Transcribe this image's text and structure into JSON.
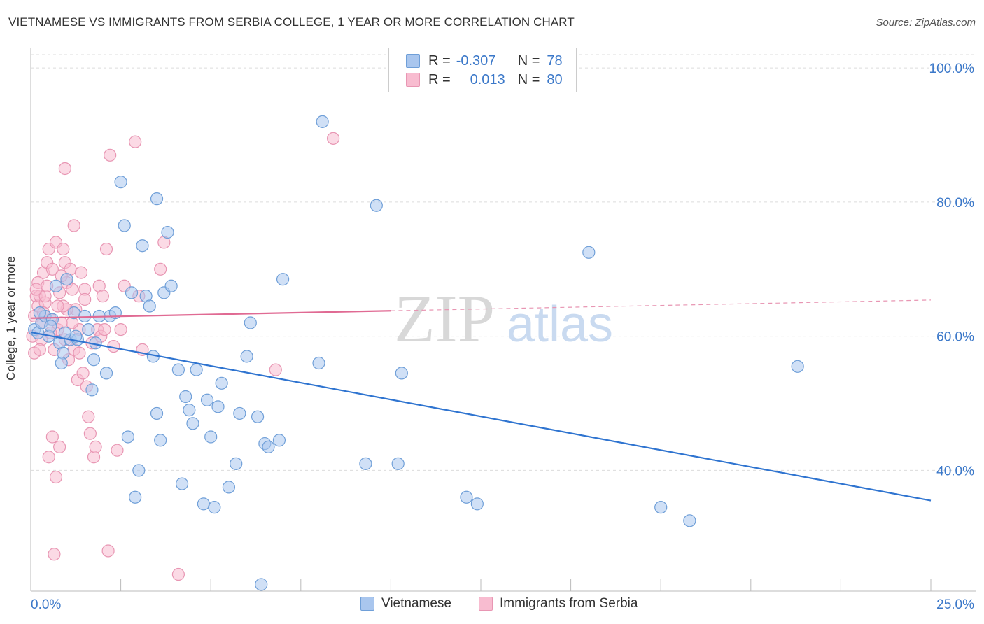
{
  "title": "VIETNAMESE VS IMMIGRANTS FROM SERBIA COLLEGE, 1 YEAR OR MORE CORRELATION CHART",
  "source": "Source: ZipAtlas.com",
  "watermark": {
    "zip": "ZIP",
    "atlas": "atlas"
  },
  "legend": {
    "rows": [
      {
        "r_label": "R =",
        "r_value": "-0.307",
        "n_label": "N =",
        "n_value": "78",
        "color": "#a9c6ee",
        "edge": "#6f9fd8"
      },
      {
        "r_label": "R =",
        "r_value": "0.013",
        "n_label": "N =",
        "n_value": "80",
        "color": "#f8bcd0",
        "edge": "#e896b3"
      }
    ]
  },
  "chart_data": {
    "type": "scatter",
    "title": "VIETNAMESE VS IMMIGRANTS FROM SERBIA COLLEGE, 1 YEAR OR MORE CORRELATION CHART",
    "xlabel": "",
    "ylabel": "College, 1 year or more",
    "xlim": [
      0,
      25
    ],
    "ylim": [
      22,
      102
    ],
    "x_tick_labels": [
      "0.0%",
      "25.0%"
    ],
    "y_ticks": [
      40,
      60,
      80,
      100
    ],
    "y_tick_labels": [
      "40.0%",
      "60.0%",
      "80.0%",
      "100.0%"
    ],
    "grid": true,
    "series": [
      {
        "name": "Vietnamese",
        "color": "#6f9fd8",
        "fill": "#a9c6ee",
        "points": [
          [
            0.1,
            61
          ],
          [
            0.2,
            60.5
          ],
          [
            0.3,
            62
          ],
          [
            0.4,
            63
          ],
          [
            0.5,
            60
          ],
          [
            0.6,
            62.5
          ],
          [
            0.7,
            67.5
          ],
          [
            0.8,
            59
          ],
          [
            0.9,
            57.5
          ],
          [
            1.0,
            68.5
          ],
          [
            1.1,
            59.5
          ],
          [
            1.3,
            59.5
          ],
          [
            1.5,
            63
          ],
          [
            1.6,
            61
          ],
          [
            1.7,
            52
          ],
          [
            1.9,
            63
          ],
          [
            2.1,
            54.5
          ],
          [
            2.2,
            63
          ],
          [
            2.5,
            83
          ],
          [
            2.6,
            76.5
          ],
          [
            2.7,
            45
          ],
          [
            2.8,
            66.5
          ],
          [
            2.9,
            36
          ],
          [
            3.0,
            40
          ],
          [
            3.1,
            73.5
          ],
          [
            3.2,
            66
          ],
          [
            3.3,
            64.5
          ],
          [
            3.4,
            57
          ],
          [
            3.5,
            48.5
          ],
          [
            3.6,
            44.5
          ],
          [
            3.5,
            80.5
          ],
          [
            3.7,
            66.5
          ],
          [
            3.8,
            75.5
          ],
          [
            3.9,
            67.5
          ],
          [
            4.1,
            55
          ],
          [
            4.2,
            38
          ],
          [
            4.3,
            51
          ],
          [
            4.4,
            49
          ],
          [
            4.5,
            47
          ],
          [
            4.6,
            55
          ],
          [
            4.8,
            35
          ],
          [
            4.9,
            50.5
          ],
          [
            5.0,
            45
          ],
          [
            5.1,
            34.5
          ],
          [
            5.2,
            49.5
          ],
          [
            5.3,
            53
          ],
          [
            5.5,
            37.5
          ],
          [
            5.7,
            41
          ],
          [
            5.8,
            48.5
          ],
          [
            6.0,
            57
          ],
          [
            6.1,
            62
          ],
          [
            6.3,
            48
          ],
          [
            6.4,
            23
          ],
          [
            6.5,
            44
          ],
          [
            6.6,
            43.5
          ],
          [
            6.9,
            44.5
          ],
          [
            7.0,
            68.5
          ],
          [
            8.1,
            92
          ],
          [
            8.0,
            56
          ],
          [
            9.3,
            41
          ],
          [
            9.6,
            79.5
          ],
          [
            10.2,
            41
          ],
          [
            10.3,
            54.5
          ],
          [
            12.1,
            36
          ],
          [
            12.4,
            35
          ],
          [
            15.5,
            72.5
          ],
          [
            17.5,
            34.5
          ],
          [
            18.3,
            32.5
          ],
          [
            21.3,
            55.5
          ],
          [
            0.25,
            63.5
          ],
          [
            0.55,
            61.5
          ],
          [
            0.85,
            56
          ],
          [
            1.25,
            60
          ],
          [
            1.75,
            56.5
          ],
          [
            2.35,
            63.5
          ],
          [
            1.2,
            63.5
          ],
          [
            0.95,
            60.5
          ],
          [
            1.8,
            59
          ]
        ],
        "trend": {
          "x": [
            0,
            25
          ],
          "y": [
            60.6,
            35.5
          ]
        }
      },
      {
        "name": "Immigrants from Serbia",
        "color": "#e896b3",
        "fill": "#f8bcd0",
        "points": [
          [
            0.05,
            60
          ],
          [
            0.1,
            63
          ],
          [
            0.15,
            66
          ],
          [
            0.2,
            64.5
          ],
          [
            0.25,
            66
          ],
          [
            0.3,
            62
          ],
          [
            0.35,
            69.5
          ],
          [
            0.4,
            65
          ],
          [
            0.45,
            71
          ],
          [
            0.5,
            73
          ],
          [
            0.55,
            62.5
          ],
          [
            0.6,
            70
          ],
          [
            0.65,
            58
          ],
          [
            0.7,
            74
          ],
          [
            0.75,
            61
          ],
          [
            0.8,
            66.5
          ],
          [
            0.85,
            62
          ],
          [
            0.9,
            73
          ],
          [
            0.95,
            71
          ],
          [
            1.0,
            68
          ],
          [
            1.05,
            56.5
          ],
          [
            1.1,
            70
          ],
          [
            1.15,
            67
          ],
          [
            1.2,
            58
          ],
          [
            1.25,
            64
          ],
          [
            1.3,
            53.5
          ],
          [
            1.35,
            61
          ],
          [
            1.4,
            69.5
          ],
          [
            1.45,
            54.5
          ],
          [
            1.5,
            67
          ],
          [
            1.55,
            52.5
          ],
          [
            1.6,
            48
          ],
          [
            1.65,
            45.5
          ],
          [
            1.7,
            59
          ],
          [
            1.75,
            42
          ],
          [
            1.8,
            43.5
          ],
          [
            1.85,
            61
          ],
          [
            1.9,
            67.5
          ],
          [
            1.95,
            60
          ],
          [
            2.0,
            66
          ],
          [
            2.05,
            61
          ],
          [
            2.1,
            73
          ],
          [
            2.15,
            28
          ],
          [
            2.2,
            87
          ],
          [
            2.3,
            58.5
          ],
          [
            2.4,
            43
          ],
          [
            2.5,
            61
          ],
          [
            2.6,
            67.5
          ],
          [
            2.9,
            89
          ],
          [
            3.0,
            66
          ],
          [
            3.1,
            58
          ],
          [
            3.6,
            70
          ],
          [
            3.7,
            74
          ],
          [
            4.1,
            24.5
          ],
          [
            6.8,
            55
          ],
          [
            8.4,
            89.5
          ],
          [
            0.95,
            85
          ],
          [
            1.2,
            76.5
          ],
          [
            0.5,
            42
          ],
          [
            0.6,
            45
          ],
          [
            0.7,
            39
          ],
          [
            0.8,
            43.5
          ],
          [
            0.65,
            27.5
          ],
          [
            0.3,
            59.5
          ],
          [
            0.4,
            66
          ],
          [
            0.2,
            68
          ],
          [
            0.15,
            67
          ],
          [
            0.1,
            57.5
          ],
          [
            1.0,
            64
          ],
          [
            0.9,
            64.5
          ],
          [
            1.5,
            65.5
          ],
          [
            0.85,
            69
          ],
          [
            0.55,
            60.5
          ],
          [
            1.35,
            57.5
          ],
          [
            0.45,
            67.5
          ],
          [
            0.35,
            63.5
          ],
          [
            0.75,
            64.5
          ],
          [
            0.25,
            58
          ],
          [
            1.15,
            62
          ],
          [
            0.95,
            59.5
          ]
        ],
        "trend": {
          "x": [
            0,
            10
          ],
          "y": [
            62.7,
            63.8
          ]
        },
        "trend_dashed": {
          "x": [
            10,
            25
          ],
          "y": [
            63.8,
            65.4
          ]
        }
      }
    ]
  },
  "bottom_legend": [
    "Vietnamese",
    "Immigrants from Serbia"
  ]
}
